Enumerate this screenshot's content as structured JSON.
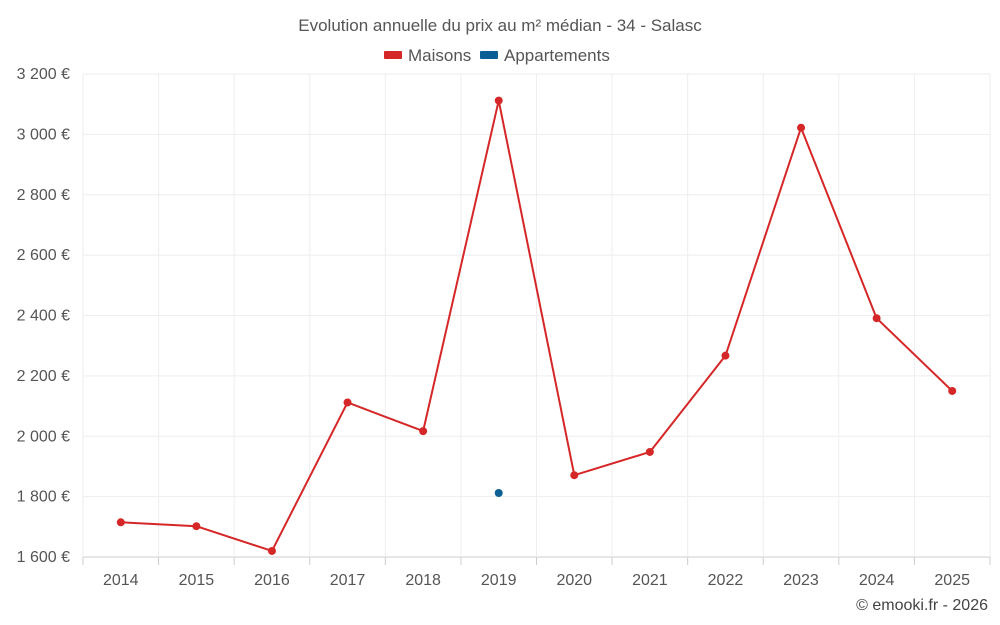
{
  "chart_data": {
    "type": "line",
    "title": "Evolution annuelle du prix au m² médian - 34 - Salasc",
    "categories": [
      "2014",
      "2015",
      "2016",
      "2017",
      "2018",
      "2019",
      "2020",
      "2021",
      "2022",
      "2023",
      "2024",
      "2025"
    ],
    "series": [
      {
        "name": "Maisons",
        "color": "#d62728",
        "values": [
          1715,
          1702,
          1620,
          2112,
          2017,
          3112,
          1871,
          1948,
          2267,
          3022,
          2391,
          2150
        ]
      },
      {
        "name": "Appartements",
        "color": "#0b5f95",
        "values": [
          null,
          null,
          null,
          null,
          null,
          1812,
          null,
          null,
          null,
          null,
          null,
          null
        ]
      }
    ],
    "ylim": [
      1600,
      3200
    ],
    "yticks": [
      1600,
      1800,
      2000,
      2200,
      2400,
      2600,
      2800,
      3000,
      3200
    ],
    "ytick_labels": [
      "1 600 €",
      "1 800 €",
      "2 000 €",
      "2 200 €",
      "2 400 €",
      "2 600 €",
      "2 800 €",
      "3 000 €",
      "3 200 €"
    ],
    "xlabel": "",
    "ylabel": "",
    "grid": true,
    "legend_position": "top-center"
  },
  "credit": "© emooki.fr - 2026"
}
